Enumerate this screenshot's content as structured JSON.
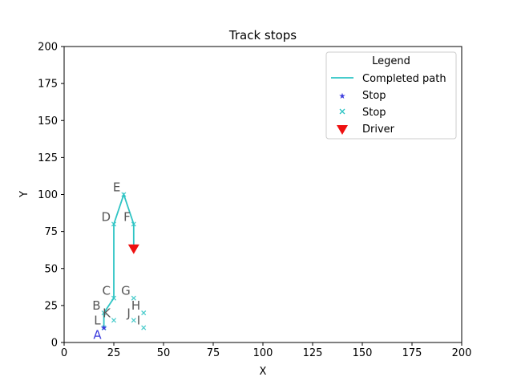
{
  "chart_data": {
    "type": "scatter",
    "title": "Track stops",
    "xlabel": "X",
    "ylabel": "Y",
    "xlim": [
      0,
      200
    ],
    "ylim": [
      0,
      200
    ],
    "x_ticks": [
      0,
      25,
      50,
      75,
      100,
      125,
      150,
      175,
      200
    ],
    "y_ticks": [
      0,
      25,
      50,
      75,
      100,
      125,
      150,
      175,
      200
    ],
    "grid": false,
    "path": {
      "name": "Completed path",
      "color": "#2ec4c4",
      "points": [
        [
          20,
          10
        ],
        [
          20,
          20
        ],
        [
          25,
          30
        ],
        [
          25,
          80
        ],
        [
          30,
          100
        ],
        [
          35,
          80
        ],
        [
          35,
          65
        ]
      ]
    },
    "start_stops": {
      "name": "Stop",
      "marker": "star",
      "color": "#3b3bdd",
      "points": [
        {
          "label": "A",
          "x": 20,
          "y": 10
        }
      ]
    },
    "stops": {
      "name": "Stop",
      "marker": "x",
      "color": "#2ec4c4",
      "points": [
        {
          "label": "B",
          "x": 20,
          "y": 20
        },
        {
          "label": "C",
          "x": 25,
          "y": 30
        },
        {
          "label": "D",
          "x": 25,
          "y": 80
        },
        {
          "label": "E",
          "x": 30,
          "y": 100
        },
        {
          "label": "F",
          "x": 35,
          "y": 80
        },
        {
          "label": "G",
          "x": 35,
          "y": 30
        },
        {
          "label": "H",
          "x": 40,
          "y": 20
        },
        {
          "label": "I",
          "x": 40,
          "y": 10
        },
        {
          "label": "J",
          "x": 35,
          "y": 15
        },
        {
          "label": "K",
          "x": 25,
          "y": 15
        },
        {
          "label": "L",
          "x": 20,
          "y": 10
        }
      ]
    },
    "driver": {
      "name": "Driver",
      "marker": "triangle-down",
      "color": "#ee1111",
      "x": 35,
      "y": 63
    },
    "legend": {
      "title": "Legend",
      "placement": "top-right",
      "entries": [
        "Completed path",
        "Stop",
        "Stop",
        "Driver"
      ]
    }
  }
}
